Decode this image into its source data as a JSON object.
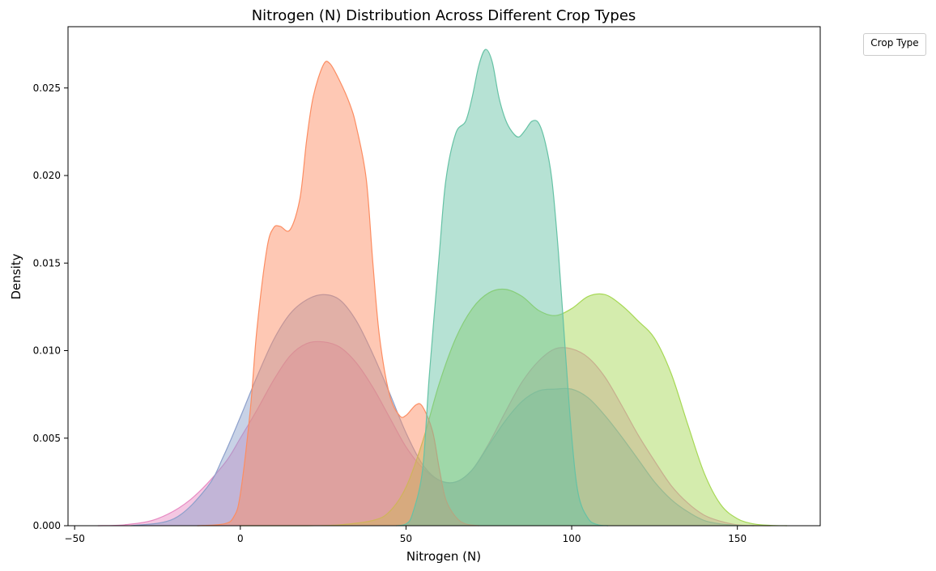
{
  "chart_data": {
    "type": "area",
    "title": "Nitrogen (N) Distribution Across Different Crop Types",
    "xlabel": "Nitrogen (N)",
    "ylabel": "Density",
    "xlim": [
      -52,
      175
    ],
    "ylim": [
      0,
      0.0285
    ],
    "x_ticks": [
      -50,
      0,
      50,
      100,
      150
    ],
    "x_tick_labels": [
      "−50",
      "0",
      "50",
      "100",
      "150"
    ],
    "y_ticks": [
      0.0,
      0.005,
      0.01,
      0.015,
      0.02,
      0.025
    ],
    "y_tick_labels": [
      "0.000",
      "0.005",
      "0.010",
      "0.015",
      "0.020",
      "0.025"
    ],
    "grid": false,
    "legend": {
      "title": "Crop Type",
      "placement": "outside-top-right"
    },
    "series": [
      {
        "color": "#e78ac3",
        "x": [
          -43,
          -35,
          -25,
          -15,
          -5,
          0,
          5,
          10,
          15,
          20,
          25,
          30,
          35,
          40,
          45,
          50,
          55,
          60,
          65,
          70,
          75,
          80,
          85,
          90,
          95,
          100,
          105,
          110,
          115,
          120,
          125,
          130,
          135,
          140,
          145,
          150,
          155,
          160
        ],
        "y": [
          0,
          5e-05,
          0.0004,
          0.0015,
          0.0035,
          0.005,
          0.0066,
          0.0083,
          0.0097,
          0.0104,
          0.0105,
          0.0102,
          0.0093,
          0.0079,
          0.0062,
          0.0045,
          0.0033,
          0.0026,
          0.0025,
          0.0032,
          0.0047,
          0.0065,
          0.0082,
          0.0094,
          0.0101,
          0.0101,
          0.0096,
          0.0085,
          0.0069,
          0.0052,
          0.0037,
          0.0023,
          0.0013,
          0.0006,
          0.00025,
          5e-05,
          1e-05,
          0
        ]
      },
      {
        "color": "#8da0cb",
        "x": [
          -33,
          -20,
          -10,
          -5,
          0,
          5,
          10,
          15,
          20,
          25,
          30,
          35,
          40,
          45,
          50,
          55,
          60,
          65,
          70,
          75,
          80,
          85,
          90,
          95,
          100,
          105,
          110,
          115,
          120,
          125,
          130,
          135,
          140,
          145,
          150,
          155
        ],
        "y": [
          0,
          0.0004,
          0.0022,
          0.004,
          0.0062,
          0.0085,
          0.0106,
          0.0121,
          0.0129,
          0.0132,
          0.0129,
          0.0117,
          0.0098,
          0.0076,
          0.0053,
          0.0035,
          0.0026,
          0.0025,
          0.0032,
          0.0046,
          0.006,
          0.0071,
          0.0077,
          0.0078,
          0.0078,
          0.0073,
          0.0063,
          0.0051,
          0.0038,
          0.0025,
          0.0015,
          0.0008,
          0.0003,
          0.0001,
          2e-05,
          0
        ]
      },
      {
        "color": "#a6d854",
        "x": [
          0,
          20,
          30,
          40,
          45,
          50,
          55,
          60,
          65,
          70,
          75,
          80,
          85,
          90,
          95,
          100,
          105,
          110,
          115,
          120,
          125,
          130,
          135,
          140,
          145,
          150,
          155,
          160,
          165
        ],
        "y": [
          0,
          0,
          5e-05,
          0.0003,
          0.0008,
          0.0022,
          0.0048,
          0.0081,
          0.0107,
          0.0124,
          0.0133,
          0.0135,
          0.0131,
          0.0123,
          0.012,
          0.0124,
          0.0131,
          0.0132,
          0.0126,
          0.0117,
          0.0107,
          0.0087,
          0.0058,
          0.003,
          0.0012,
          0.0004,
          0.0001,
          2e-05,
          0
        ]
      },
      {
        "color": "#fc8d62",
        "x": [
          -13,
          -5,
          -2,
          0,
          3,
          5,
          8,
          10,
          12,
          15,
          18,
          20,
          22,
          25,
          27,
          30,
          33,
          35,
          38,
          40,
          42,
          45,
          48,
          50,
          53,
          55,
          58,
          60,
          62,
          65,
          68,
          72
        ],
        "y": [
          0,
          0.0001,
          0.0005,
          0.0018,
          0.0066,
          0.0112,
          0.0158,
          0.017,
          0.0171,
          0.0169,
          0.0187,
          0.022,
          0.0245,
          0.0263,
          0.0264,
          0.0254,
          0.0241,
          0.0228,
          0.0198,
          0.015,
          0.0108,
          0.0075,
          0.0063,
          0.0063,
          0.0069,
          0.0068,
          0.0054,
          0.0033,
          0.0015,
          0.0005,
          0.0001,
          0
        ]
      },
      {
        "color": "#66c2a5",
        "x": [
          47,
          50,
          52,
          55,
          57,
          60,
          62,
          65,
          68,
          70,
          72,
          74,
          76,
          78,
          80,
          82,
          84,
          86,
          88,
          90,
          92,
          94,
          96,
          98,
          100,
          102,
          105,
          108,
          111
        ],
        "y": [
          0,
          0.0001,
          0.0007,
          0.0032,
          0.0085,
          0.0154,
          0.0197,
          0.0224,
          0.0231,
          0.0245,
          0.0263,
          0.0272,
          0.0265,
          0.0245,
          0.0232,
          0.0225,
          0.0222,
          0.0226,
          0.0231,
          0.023,
          0.0219,
          0.0198,
          0.0156,
          0.0102,
          0.0051,
          0.0018,
          0.0004,
          5e-05,
          0
        ]
      }
    ]
  }
}
